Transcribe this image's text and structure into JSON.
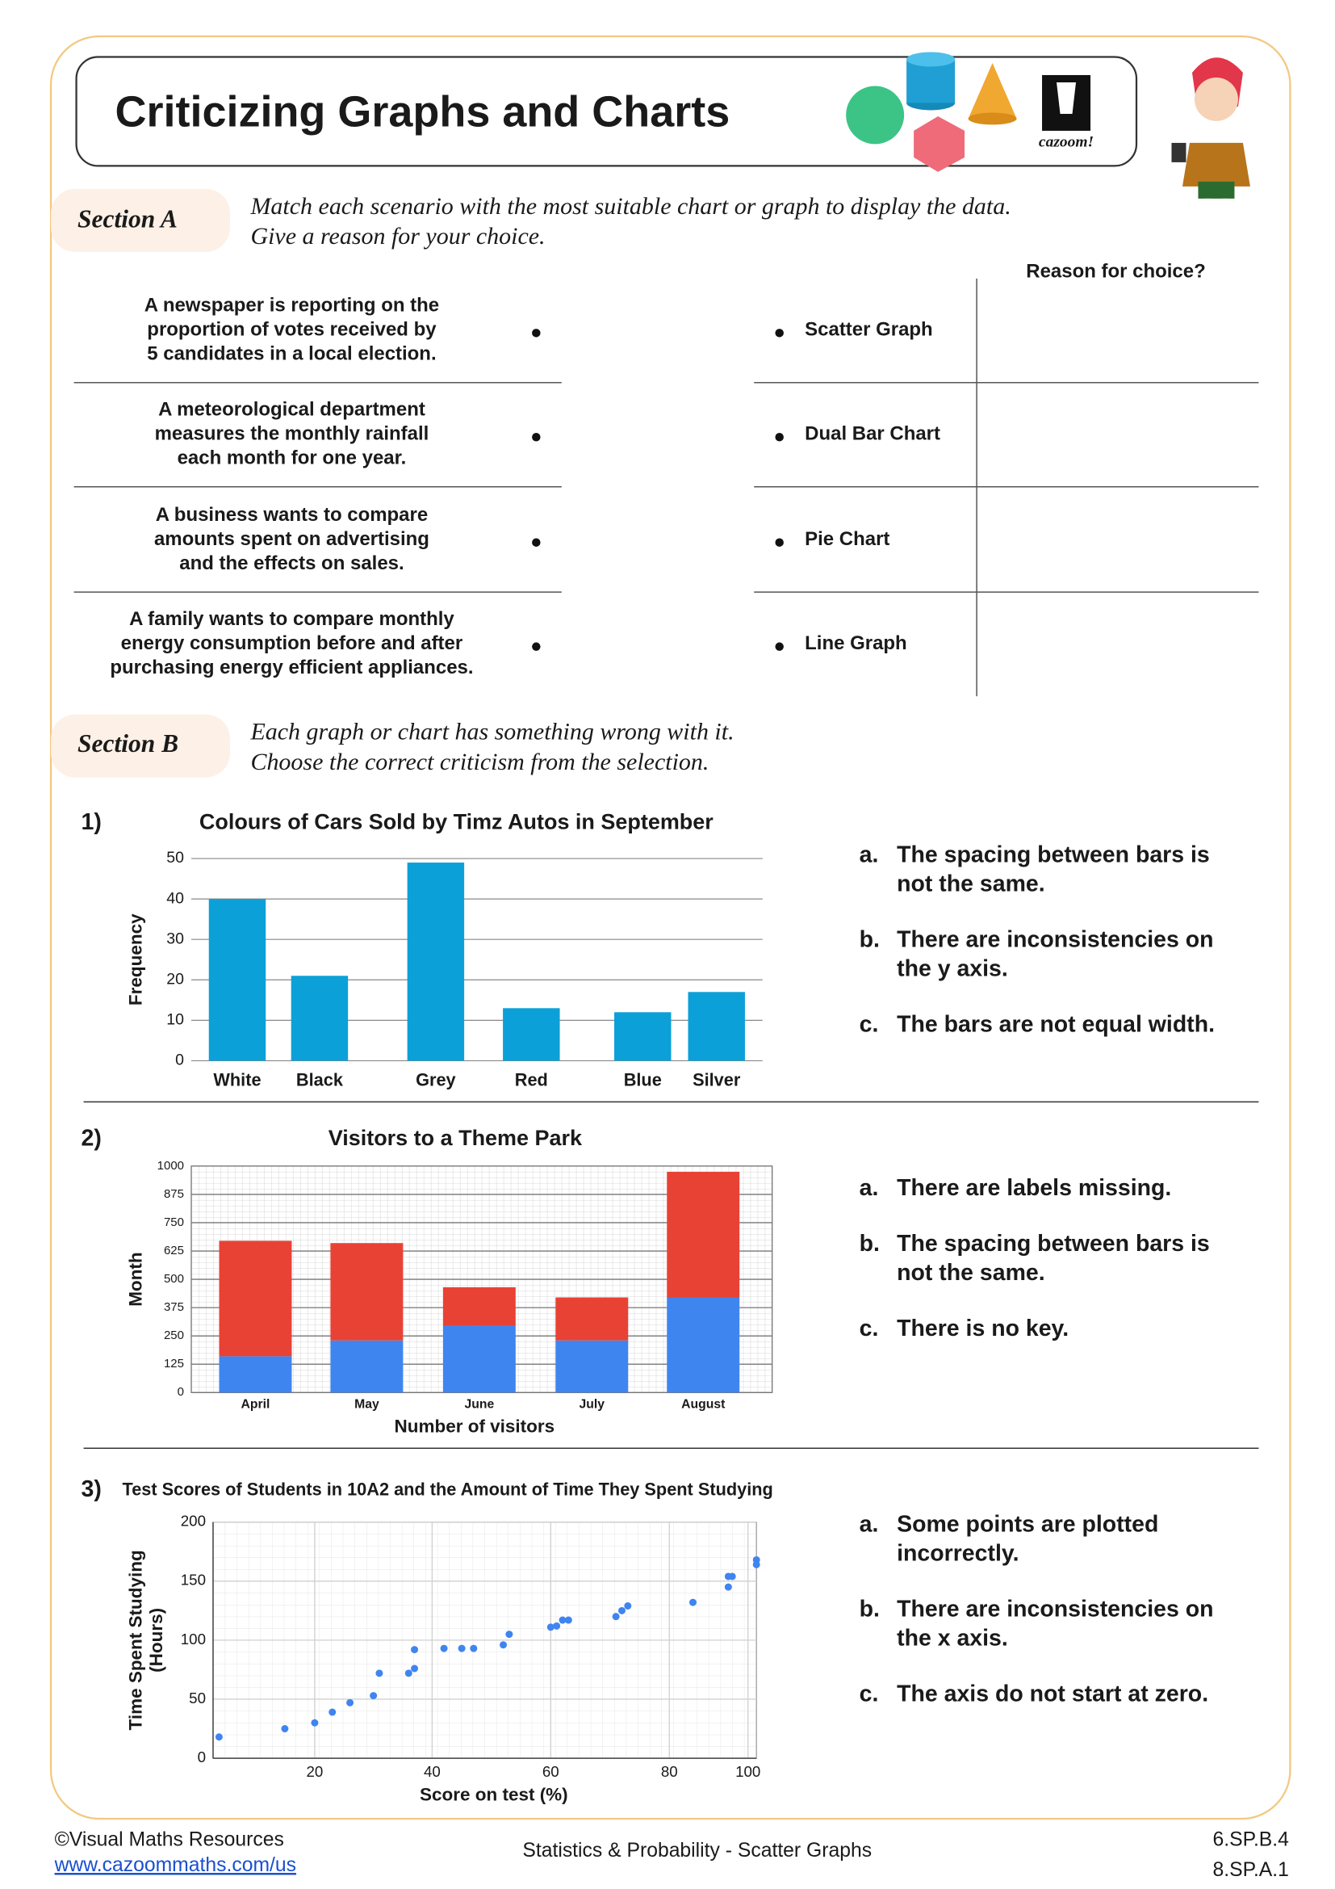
{
  "header": {
    "title": "Criticizing Graphs and Charts",
    "logo": "cazoom!"
  },
  "section_a": {
    "label": "Section A",
    "instructions": [
      "Match each scenario with the most suitable chart or graph to display the data.",
      "Give a reason for your choice."
    ],
    "reason_header": "Reason for choice?",
    "scenarios": [
      [
        "A newspaper is reporting on the",
        "proportion of votes received by",
        "5 candidates in a local election."
      ],
      [
        "A meteorological department",
        "measures the monthly rainfall",
        "each month for one year."
      ],
      [
        "A business wants to compare",
        "amounts spent on advertising",
        "and the effects on sales."
      ],
      [
        "A family wants to compare monthly",
        "energy consumption before and after",
        "purchasing energy efficient appliances."
      ]
    ],
    "options": [
      "Scatter Graph",
      "Dual Bar Chart",
      "Pie Chart",
      "Line Graph"
    ]
  },
  "section_b": {
    "label": "Section B",
    "instructions": [
      "Each graph or chart has something wrong with it.",
      "Choose the correct criticism from the selection."
    ],
    "questions": [
      {
        "number": "1)",
        "options": [
          {
            "letter": "a.",
            "lines": [
              "The spacing between bars is",
              "not the same."
            ]
          },
          {
            "letter": "b.",
            "lines": [
              "There are inconsistencies on",
              "the y axis."
            ]
          },
          {
            "letter": "c.",
            "lines": [
              "The bars are not equal width."
            ]
          }
        ]
      },
      {
        "number": "2)",
        "options": [
          {
            "letter": "a.",
            "lines": [
              "There are labels missing."
            ]
          },
          {
            "letter": "b.",
            "lines": [
              "The spacing between bars is",
              "not the same."
            ]
          },
          {
            "letter": "c.",
            "lines": [
              "There is no key."
            ]
          }
        ]
      },
      {
        "number": "3)",
        "options": [
          {
            "letter": "a.",
            "lines": [
              "Some points are plotted",
              "incorrectly."
            ]
          },
          {
            "letter": "b.",
            "lines": [
              "There are inconsistencies on",
              "the x axis."
            ]
          },
          {
            "letter": "c.",
            "lines": [
              "The axis do not start at zero."
            ]
          }
        ]
      }
    ]
  },
  "chart_data": [
    {
      "type": "bar",
      "title": "Colours of Cars Sold by Timz Autos in September",
      "y_label": "Frequency",
      "categories": [
        "White",
        "Black",
        "Grey",
        "Red",
        "Blue",
        "Silver"
      ],
      "values": [
        40,
        21,
        49,
        13,
        12,
        17
      ],
      "color": "#0ca0d8",
      "ylim": [
        0,
        50
      ],
      "yticks": [
        0,
        10,
        20,
        30,
        40,
        50
      ],
      "grid": true
    },
    {
      "type": "bar",
      "stacked": true,
      "title": "Visitors to a Theme Park",
      "y_label": "Month",
      "x_label": "Number of visitors",
      "categories": [
        "April",
        "May",
        "June",
        "July",
        "August"
      ],
      "series": [
        {
          "color": "#3f85f0",
          "values": [
            160,
            230,
            295,
            230,
            420
          ]
        },
        {
          "color": "#e84235",
          "values": [
            510,
            430,
            170,
            190,
            555
          ]
        }
      ],
      "ylim": [
        0,
        1000
      ],
      "yticks": [
        0,
        125,
        250,
        375,
        500,
        625,
        750,
        875,
        1000
      ],
      "grid": true
    },
    {
      "type": "scatter",
      "title": "Test Scores of Students in 10A2 and the Amount of Time They Spent Studying",
      "x_label": "Score on test (%)",
      "y_label": [
        "Time Spent Studying",
        "(Hours)"
      ],
      "color": "#3f85f0",
      "x": [
        4,
        15,
        20,
        23,
        26,
        30,
        31,
        36,
        37,
        37,
        42,
        45,
        47,
        52,
        53,
        60,
        61,
        62,
        63,
        71,
        72,
        73,
        86,
        95,
        95,
        96,
        102,
        102
      ],
      "values": [
        18,
        25,
        30,
        39,
        47,
        53,
        72,
        72,
        76,
        92,
        93,
        93,
        93,
        96,
        105,
        111,
        112,
        117,
        117,
        120,
        125,
        129,
        132,
        145,
        154,
        154,
        168,
        164
      ],
      "xlim": [
        3,
        102
      ],
      "xticks": [
        20,
        40,
        60,
        80,
        100
      ],
      "ylim": [
        0,
        200
      ],
      "yticks": [
        0,
        50,
        100,
        150,
        200
      ],
      "grid": true
    }
  ],
  "footer": {
    "copyright": "©Visual Maths Resources",
    "url": "www.cazoommaths.com/us",
    "topic": "Statistics & Probability - Scatter Graphs",
    "standards": [
      "6.SP.B.4",
      "8.SP.A.1"
    ]
  }
}
